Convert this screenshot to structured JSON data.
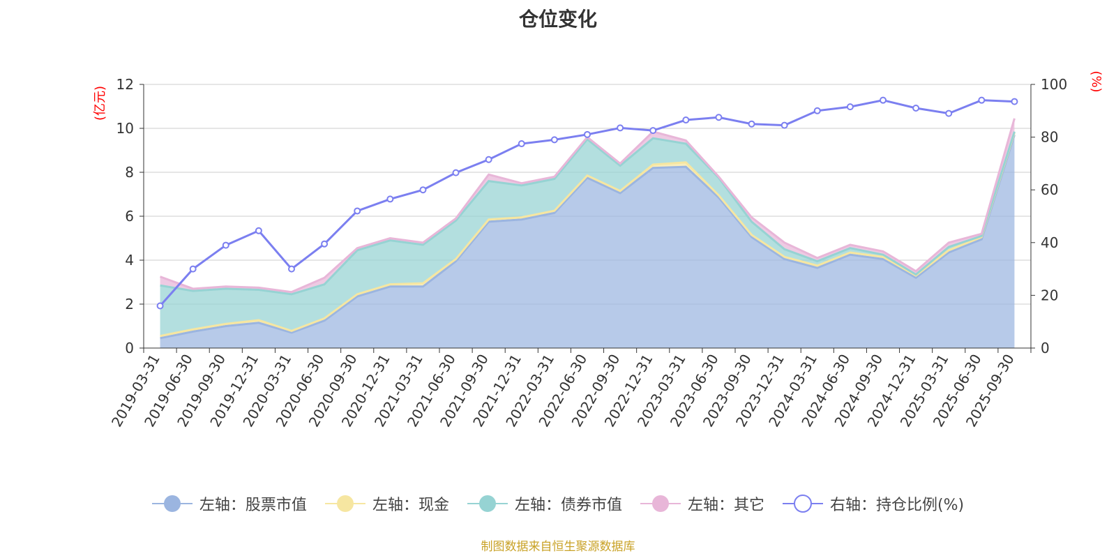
{
  "title": "仓位变化",
  "left_axis_unit": "(亿元)",
  "right_axis_unit": "(%)",
  "source": "制图数据来自恒生聚源数据库",
  "colors": {
    "stock": "#9bb5e0",
    "cash": "#f6e6a1",
    "bond": "#96d3d3",
    "other": "#e8b6d8",
    "ratio": "#7b7ff0",
    "axis_unit": "#ff0000",
    "source": "#c9a227"
  },
  "chart_data": {
    "type": "area",
    "categories": [
      "2019-03-31",
      "2019-06-30",
      "2019-09-30",
      "2019-12-31",
      "2020-03-31",
      "2020-06-30",
      "2020-09-30",
      "2020-12-31",
      "2021-03-31",
      "2021-06-30",
      "2021-09-30",
      "2021-12-31",
      "2022-03-31",
      "2022-06-30",
      "2022-09-30",
      "2022-12-31",
      "2023-03-31",
      "2023-06-30",
      "2023-09-30",
      "2023-12-31",
      "2024-03-31",
      "2024-06-30",
      "2024-09-30",
      "2024-12-31",
      "2025-03-31",
      "2025-06-30",
      "2025-09-30"
    ],
    "y_left": {
      "min": 0,
      "max": 12,
      "ticks": [
        0,
        2,
        4,
        6,
        8,
        10,
        12
      ]
    },
    "y_right": {
      "min": 0,
      "max": 100,
      "ticks": [
        0,
        20,
        40,
        60,
        80,
        100
      ]
    },
    "stack_order": [
      "stock",
      "cash",
      "bond",
      "other"
    ],
    "series": [
      {
        "key": "stock",
        "name": "左轴：股票市值",
        "axis": "left",
        "values": [
          0.45,
          0.75,
          1.0,
          1.15,
          0.7,
          1.25,
          2.35,
          2.8,
          2.8,
          3.95,
          5.75,
          5.85,
          6.15,
          7.75,
          7.05,
          8.2,
          8.25,
          6.85,
          5.05,
          4.05,
          3.65,
          4.25,
          4.05,
          3.2,
          4.35,
          4.95,
          9.7
        ]
      },
      {
        "key": "cash",
        "name": "左轴：现金",
        "axis": "left",
        "values": [
          0.1,
          0.1,
          0.1,
          0.12,
          0.08,
          0.1,
          0.1,
          0.1,
          0.15,
          0.1,
          0.1,
          0.1,
          0.1,
          0.1,
          0.1,
          0.15,
          0.2,
          0.1,
          0.1,
          0.1,
          0.1,
          0.1,
          0.1,
          0.1,
          0.1,
          0.1,
          0.1
        ]
      },
      {
        "key": "bond",
        "name": "左轴：债券市值",
        "axis": "left",
        "values": [
          2.3,
          1.75,
          1.6,
          1.38,
          1.67,
          1.55,
          2.0,
          2.0,
          1.75,
          1.75,
          1.75,
          1.45,
          1.45,
          1.65,
          1.15,
          1.2,
          0.85,
          0.8,
          0.6,
          0.35,
          0.2,
          0.2,
          0.1,
          0.05,
          0.15,
          0.05,
          0.05
        ]
      },
      {
        "key": "other",
        "name": "左轴：其它",
        "axis": "left",
        "values": [
          0.4,
          0.1,
          0.1,
          0.1,
          0.1,
          0.3,
          0.1,
          0.1,
          0.1,
          0.1,
          0.3,
          0.1,
          0.1,
          0.1,
          0.1,
          0.3,
          0.15,
          0.05,
          0.2,
          0.3,
          0.15,
          0.15,
          0.15,
          0.15,
          0.2,
          0.1,
          0.6
        ]
      },
      {
        "key": "ratio",
        "name": "右轴：持仓比例(%)",
        "axis": "right",
        "values": [
          16,
          30,
          39,
          44.5,
          30,
          39.5,
          52,
          56.5,
          60,
          66.5,
          71.5,
          77.5,
          79,
          81,
          83.5,
          82.5,
          86.5,
          87.5,
          85,
          84.5,
          90,
          91.5,
          94,
          91,
          89,
          94,
          93.5
        ]
      }
    ]
  }
}
